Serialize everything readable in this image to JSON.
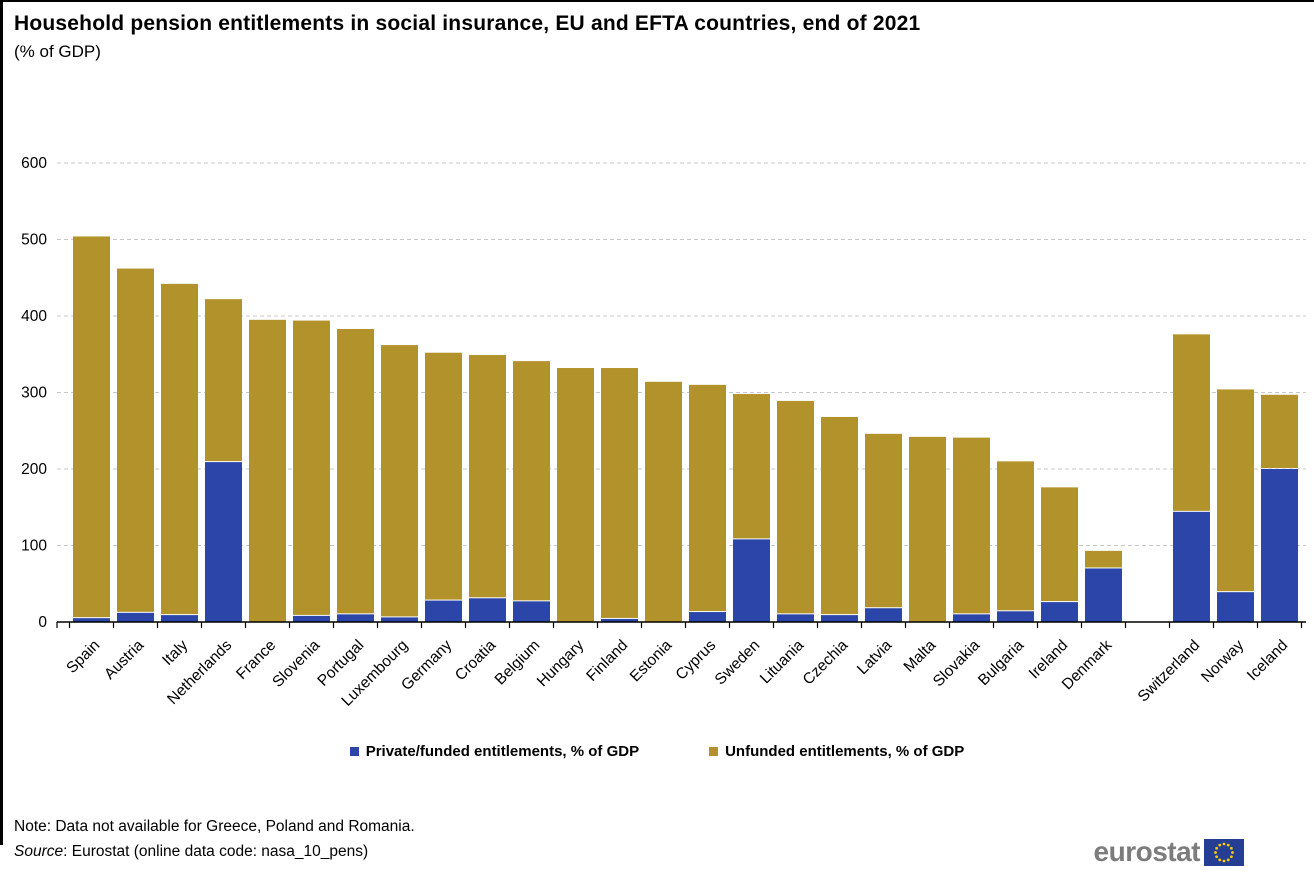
{
  "chart_data": {
    "type": "bar",
    "stacked": true,
    "title": "Household pension entitlements in social insurance, EU and EFTA countries, end of 2021",
    "subtitle": "(% of GDP)",
    "categories": [
      "Spain",
      "Austria",
      "Italy",
      "Netherlands",
      "France",
      "Slovenia",
      "Portugal",
      "Luxembourg",
      "Germany",
      "Croatia",
      "Belgium",
      "Hungary",
      "Finland",
      "Estonia",
      "Cyprus",
      "Sweden",
      "Lituania",
      "Czechia",
      "Latvia",
      "Malta",
      "Slovakia",
      "Bulgaria",
      "Ireland",
      "Denmark",
      "Switzerland",
      "Norway",
      "Iceland"
    ],
    "series": [
      {
        "name": "Private/funded entitlements, % of GDP",
        "color": "#2b46a8",
        "values": [
          5,
          12,
          9,
          209,
          0,
          8,
          10,
          6,
          28,
          31,
          27,
          0,
          4,
          0,
          13,
          108,
          10,
          9,
          18,
          0,
          10,
          14,
          26,
          70,
          144,
          39,
          200
        ]
      },
      {
        "name": "Unfunded entitlements, % of GDP",
        "color": "#b2922b",
        "values": [
          499,
          450,
          433,
          213,
          395,
          386,
          373,
          356,
          324,
          318,
          314,
          332,
          328,
          314,
          297,
          190,
          279,
          259,
          228,
          242,
          231,
          196,
          150,
          23,
          232,
          265,
          97
        ]
      }
    ],
    "totals": [
      504,
      462,
      442,
      422,
      395,
      394,
      383,
      362,
      352,
      349,
      341,
      332,
      332,
      314,
      310,
      298,
      289,
      268,
      246,
      242,
      241,
      210,
      176,
      93,
      376,
      304,
      297
    ],
    "ylim": [
      0,
      600
    ],
    "yticks": [
      0,
      100,
      200,
      300,
      400,
      500,
      600
    ],
    "grid": true,
    "legend_position": "bottom",
    "efta_gap_after": "Denmark"
  },
  "footer": {
    "note": "Note: Data not available for Greece, Poland and Romania.",
    "source_prefix": "Source",
    "source_text": ": Eurostat (online data code: nasa_10_pens)"
  },
  "logo": {
    "text": "eurostat"
  },
  "style": {
    "grid_color": "#c8c8c8",
    "axis_color": "#000000",
    "star_color": "#ffcc00",
    "flag_color": "#243e94"
  }
}
